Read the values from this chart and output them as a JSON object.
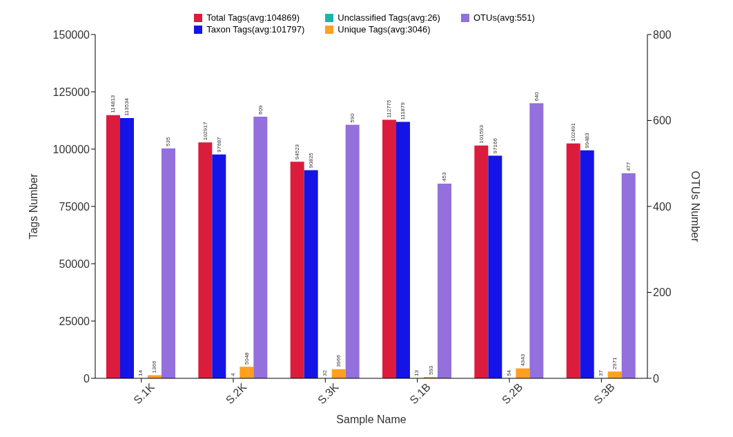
{
  "chart_data": {
    "type": "bar",
    "xlabel": "Sample Name",
    "ylabel": "Tags Number",
    "y2label": "OTUs Number",
    "categories": [
      "S.1K",
      "S.2K",
      "S.3K",
      "S.1B",
      "S.2B",
      "S.3B"
    ],
    "series": [
      {
        "name": "Total Tags(avg:104869)",
        "color": "#dc1c3c",
        "values": [
          114813,
          102917,
          94523,
          112775,
          101593,
          102491
        ]
      },
      {
        "name": "Taxon Tags(avg:101797)",
        "color": "#1414e6",
        "values": [
          113534,
          97687,
          90825,
          111879,
          97166,
          99483
        ]
      },
      {
        "name": "Unclassified Tags(avg:26)",
        "color": "#20b2aa",
        "values": [
          14,
          4,
          32,
          13,
          54,
          37
        ]
      },
      {
        "name": "Unique Tags(avg:3046)",
        "color": "#ffa020",
        "values": [
          1366,
          5048,
          3966,
          593,
          4343,
          2971
        ]
      },
      {
        "name": "OTUs(avg:551)",
        "color": "#9370db",
        "axis": "y2",
        "values": [
          535,
          609,
          590,
          453,
          640,
          477
        ]
      }
    ],
    "ylim": [
      0,
      150000
    ],
    "yticks": [
      0,
      25000,
      50000,
      75000,
      100000,
      125000,
      150000
    ],
    "y2lim": [
      0,
      800
    ],
    "y2ticks": [
      0,
      200,
      400,
      600,
      800
    ],
    "data_labels": true,
    "legend": "top",
    "grid": false
  }
}
